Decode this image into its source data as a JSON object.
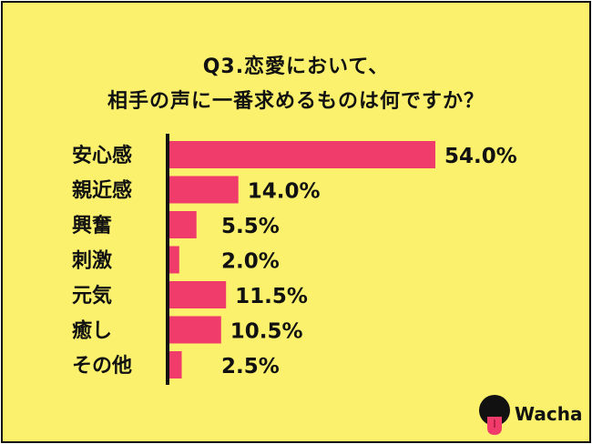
{
  "colors": {
    "background": "#fbf16d",
    "bar": "#f03c6a",
    "text": "#111111"
  },
  "brand": {
    "name": "Wacha",
    "logo_icon": "wacha-tongue-logo-icon"
  },
  "chart_data": {
    "type": "bar",
    "orientation": "horizontal",
    "title": [
      "Q3.恋愛において、",
      "相手の声に一番求めるものは何ですか？"
    ],
    "categories": [
      "安心感",
      "親近感",
      "興奮",
      "刺激",
      "元気",
      "癒し",
      "その他"
    ],
    "values": [
      54.0,
      14.0,
      5.5,
      2.0,
      11.5,
      10.5,
      2.5
    ],
    "value_labels": [
      "54.0%",
      "14.0%",
      "5.5%",
      "2.0%",
      "11.5%",
      "10.5%",
      "2.5%"
    ],
    "unit": "%",
    "xlim": [
      0,
      54
    ],
    "grid": false,
    "legend": false
  }
}
